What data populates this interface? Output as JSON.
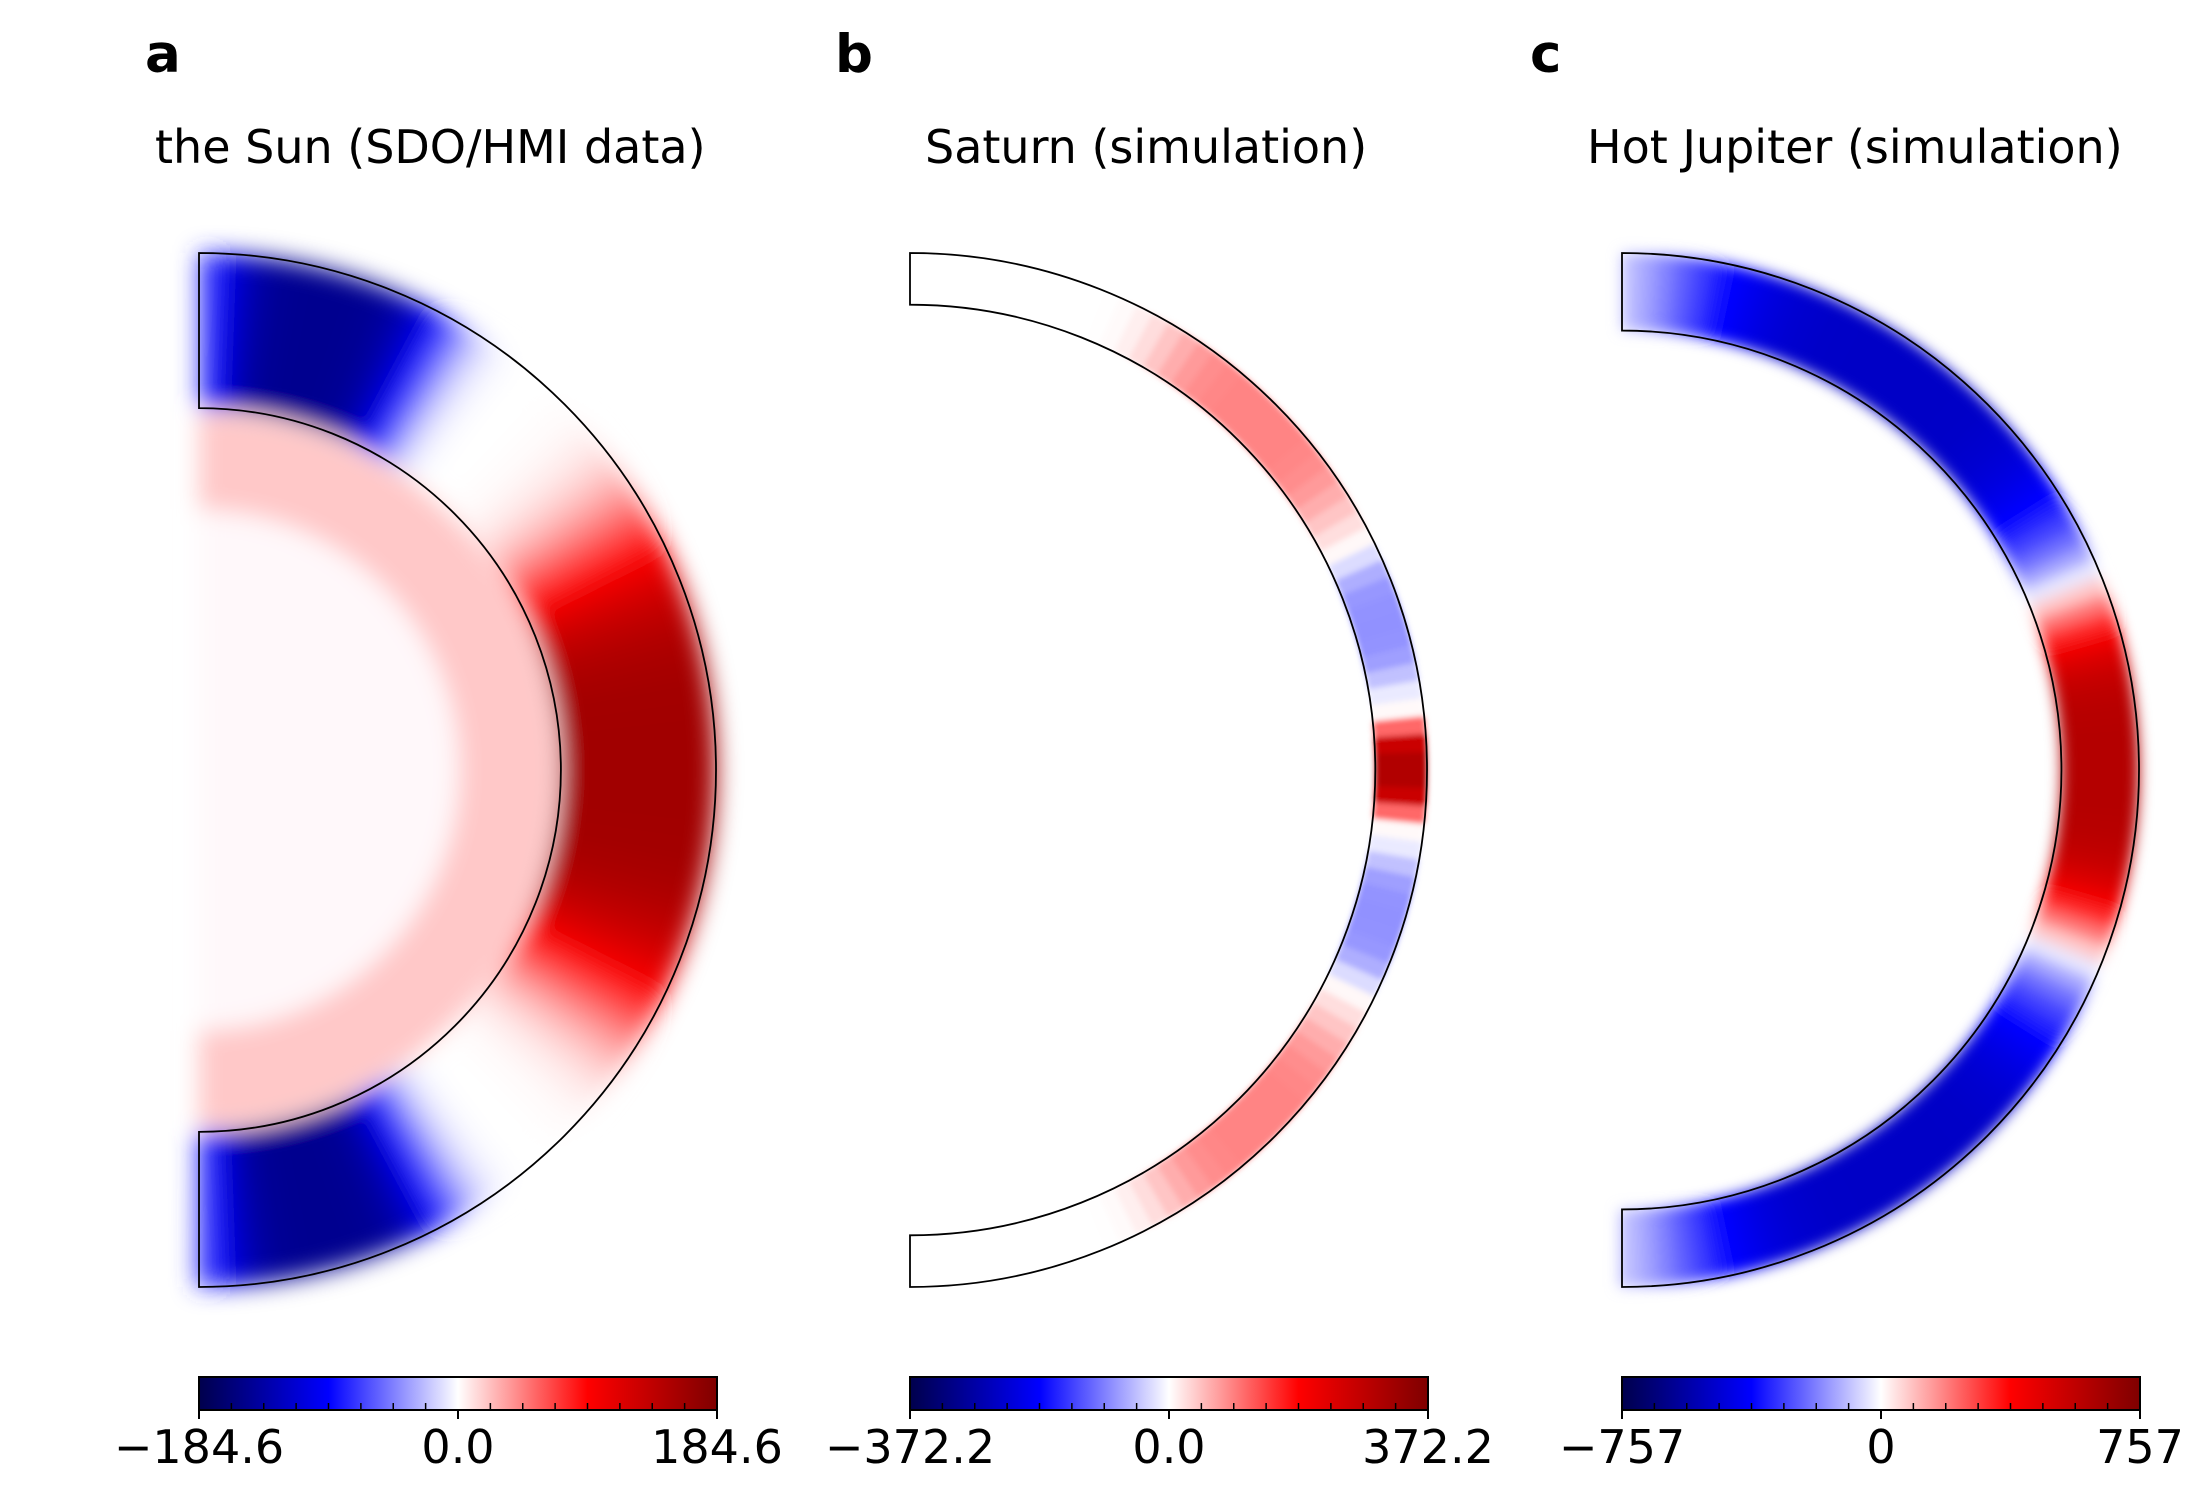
{
  "chart_data": [
    {
      "type": "heatmap",
      "panel_label": "a",
      "title": "the Sun (SDO/HMI data)",
      "inner_radius_fraction": 0.7,
      "colorbar": {
        "min": -184.6,
        "max": 184.6,
        "ticks": [
          "−184.6",
          "0.0",
          "184.6"
        ],
        "colormap": "seismic"
      },
      "zones": [
        {
          "latitude_range": [
            60,
            90
          ],
          "value": -150
        },
        {
          "latitude_range": [
            -30,
            30
          ],
          "value": 160
        },
        {
          "latitude_range": [
            -90,
            -60
          ],
          "value": -150
        },
        {
          "region": "interior",
          "value": 20
        }
      ]
    },
    {
      "type": "heatmap",
      "panel_label": "b",
      "title": "Saturn (simulation)",
      "inner_radius_fraction": 0.9,
      "colorbar": {
        "min": -372.2,
        "max": 372.2,
        "ticks": [
          "−372.2",
          "0.0",
          "372.2"
        ],
        "colormap": "seismic"
      },
      "zones": [
        {
          "latitude_range": [
            -5,
            5
          ],
          "value": 300
        },
        {
          "latitude_range": [
            10,
            25
          ],
          "value": -80
        },
        {
          "latitude_range": [
            -25,
            -10
          ],
          "value": -80
        },
        {
          "latitude_range": [
            30,
            60
          ],
          "value": 90
        },
        {
          "latitude_range": [
            -60,
            -30
          ],
          "value": 90
        }
      ]
    },
    {
      "type": "heatmap",
      "panel_label": "c",
      "title": "Hot Jupiter (simulation)",
      "inner_radius_fraction": 0.85,
      "colorbar": {
        "min": -757,
        "max": 757,
        "ticks": [
          "−757",
          "0",
          "757"
        ],
        "colormap": "seismic"
      },
      "zones": [
        {
          "latitude_range": [
            -20,
            20
          ],
          "value": 600
        },
        {
          "latitude_range": [
            25,
            85
          ],
          "value": -500
        },
        {
          "latitude_range": [
            -85,
            -25
          ],
          "value": -500
        }
      ]
    }
  ]
}
